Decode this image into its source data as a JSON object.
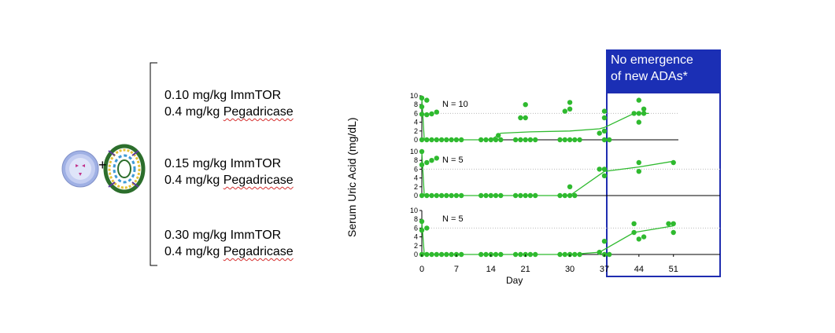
{
  "doses": [
    {
      "immtor_dose": "0.10 mg/kg",
      "immtor_name": "ImmTOR",
      "peg_dose": "0.4 mg/kg",
      "peg_name": "Pegadricase"
    },
    {
      "immtor_dose": "0.15 mg/kg",
      "immtor_name": "ImmTOR",
      "peg_dose": "0.4 mg/kg",
      "peg_name": "Pegadricase"
    },
    {
      "immtor_dose": "0.30 mg/kg",
      "immtor_name": "ImmTOR",
      "peg_dose": "0.4 mg/kg",
      "peg_name": "Pegadricase"
    }
  ],
  "plus_sign": "+",
  "callout": {
    "line1": "No emergence",
    "line2": "of new ADAs*"
  },
  "colors": {
    "data": "#2fba2f",
    "callout_bg": "#1b2fb5",
    "callout_border": "#1f2db0",
    "grid": "#bbbbbb"
  },
  "chart_data": {
    "type": "scatter",
    "ylabel": "Serum Uric Acid (mg/dL)",
    "xlabel": "Day",
    "x_ticks": [
      0,
      7,
      14,
      21,
      30,
      37,
      44,
      51
    ],
    "xlim": [
      0,
      52
    ],
    "panels": [
      {
        "label": "N = 10",
        "ylim": [
          0,
          10
        ],
        "y_ticks": [
          0,
          2,
          4,
          6,
          8,
          10
        ],
        "reference_line": 6,
        "points": [
          [
            0,
            9.5
          ],
          [
            0,
            7.5
          ],
          [
            0,
            5.8
          ],
          [
            1,
            9
          ],
          [
            1,
            5.7
          ],
          [
            2,
            5.9
          ],
          [
            3,
            6.3
          ],
          [
            0,
            0
          ],
          [
            1,
            0
          ],
          [
            2,
            0
          ],
          [
            3,
            0
          ],
          [
            4,
            0
          ],
          [
            5,
            0
          ],
          [
            6,
            0
          ],
          [
            7,
            0
          ],
          [
            8,
            0
          ],
          [
            12,
            0
          ],
          [
            13,
            0
          ],
          [
            14,
            0
          ],
          [
            15,
            0
          ],
          [
            16,
            0
          ],
          [
            15.5,
            1
          ],
          [
            19,
            0
          ],
          [
            20,
            0
          ],
          [
            21,
            0
          ],
          [
            22,
            0
          ],
          [
            23,
            0
          ],
          [
            20,
            5
          ],
          [
            21,
            5
          ],
          [
            21,
            8
          ],
          [
            28,
            0
          ],
          [
            29,
            0
          ],
          [
            30,
            0
          ],
          [
            31,
            0
          ],
          [
            32,
            0
          ],
          [
            29,
            6.5
          ],
          [
            30,
            7
          ],
          [
            30,
            8.5
          ],
          [
            36,
            1.5
          ],
          [
            37,
            2
          ],
          [
            37,
            0
          ],
          [
            38,
            0
          ],
          [
            37,
            5
          ],
          [
            37,
            6.5
          ],
          [
            43,
            6
          ],
          [
            44,
            6
          ],
          [
            44,
            4
          ],
          [
            44,
            9
          ],
          [
            45,
            6
          ],
          [
            45,
            7
          ]
        ],
        "trend": [
          [
            0,
            9.5
          ],
          [
            0.5,
            0
          ],
          [
            8,
            0
          ],
          [
            14,
            0
          ],
          [
            16,
            1.5
          ],
          [
            22,
            1.8
          ],
          [
            30,
            2
          ],
          [
            36,
            2.5
          ],
          [
            37,
            2.8
          ],
          [
            43,
            6
          ],
          [
            46,
            6
          ]
        ]
      },
      {
        "label": "N = 5",
        "ylim": [
          0,
          10
        ],
        "y_ticks": [
          0,
          2,
          4,
          6,
          8,
          10
        ],
        "reference_line": 6,
        "points": [
          [
            0,
            10
          ],
          [
            0,
            7
          ],
          [
            1,
            7.5
          ],
          [
            2,
            8
          ],
          [
            3,
            8.5
          ],
          [
            0,
            0
          ],
          [
            1,
            0
          ],
          [
            2,
            0
          ],
          [
            3,
            0
          ],
          [
            4,
            0
          ],
          [
            5,
            0
          ],
          [
            6,
            0
          ],
          [
            7,
            0
          ],
          [
            8,
            0
          ],
          [
            12,
            0
          ],
          [
            13,
            0
          ],
          [
            14,
            0
          ],
          [
            15,
            0
          ],
          [
            16,
            0
          ],
          [
            19,
            0
          ],
          [
            20,
            0
          ],
          [
            21,
            0
          ],
          [
            22,
            0
          ],
          [
            23,
            0
          ],
          [
            28,
            0
          ],
          [
            29,
            0
          ],
          [
            30,
            0
          ],
          [
            31,
            0
          ],
          [
            30,
            2
          ],
          [
            36,
            6
          ],
          [
            37,
            6
          ],
          [
            37,
            4.5
          ],
          [
            44,
            7.5
          ],
          [
            44,
            5.5
          ],
          [
            51,
            7.5
          ]
        ],
        "trend": [
          [
            0,
            10
          ],
          [
            0.5,
            0
          ],
          [
            8,
            0
          ],
          [
            14,
            0
          ],
          [
            21,
            0
          ],
          [
            30,
            0
          ],
          [
            37,
            5.5
          ],
          [
            44,
            6.5
          ],
          [
            51,
            7.8
          ]
        ]
      },
      {
        "label": "N = 5",
        "ylim": [
          0,
          10
        ],
        "y_ticks": [
          0,
          2,
          4,
          6,
          8,
          10
        ],
        "reference_line": 6,
        "points": [
          [
            0,
            7.5
          ],
          [
            0,
            5.5
          ],
          [
            1,
            6
          ],
          [
            0,
            0
          ],
          [
            1,
            0
          ],
          [
            2,
            0
          ],
          [
            3,
            0
          ],
          [
            4,
            0
          ],
          [
            5,
            0
          ],
          [
            6,
            0
          ],
          [
            7,
            0
          ],
          [
            8,
            0
          ],
          [
            12,
            0
          ],
          [
            13,
            0
          ],
          [
            14,
            0
          ],
          [
            15,
            0
          ],
          [
            16,
            0
          ],
          [
            19,
            0
          ],
          [
            20,
            0
          ],
          [
            21,
            0
          ],
          [
            22,
            0
          ],
          [
            23,
            0
          ],
          [
            28,
            0
          ],
          [
            29,
            0
          ],
          [
            30,
            0
          ],
          [
            31,
            0
          ],
          [
            32,
            0
          ],
          [
            36,
            0.5
          ],
          [
            37,
            3
          ],
          [
            37,
            0
          ],
          [
            38,
            0
          ],
          [
            43,
            7
          ],
          [
            43,
            5
          ],
          [
            44,
            3.5
          ],
          [
            45,
            4
          ],
          [
            50,
            7
          ],
          [
            51,
            7
          ],
          [
            51,
            5
          ]
        ],
        "trend": [
          [
            0,
            7.5
          ],
          [
            0.5,
            0
          ],
          [
            8,
            0
          ],
          [
            14,
            0
          ],
          [
            21,
            0
          ],
          [
            30,
            0
          ],
          [
            36,
            0.5
          ],
          [
            43,
            5
          ],
          [
            51,
            6.5
          ]
        ]
      }
    ]
  }
}
